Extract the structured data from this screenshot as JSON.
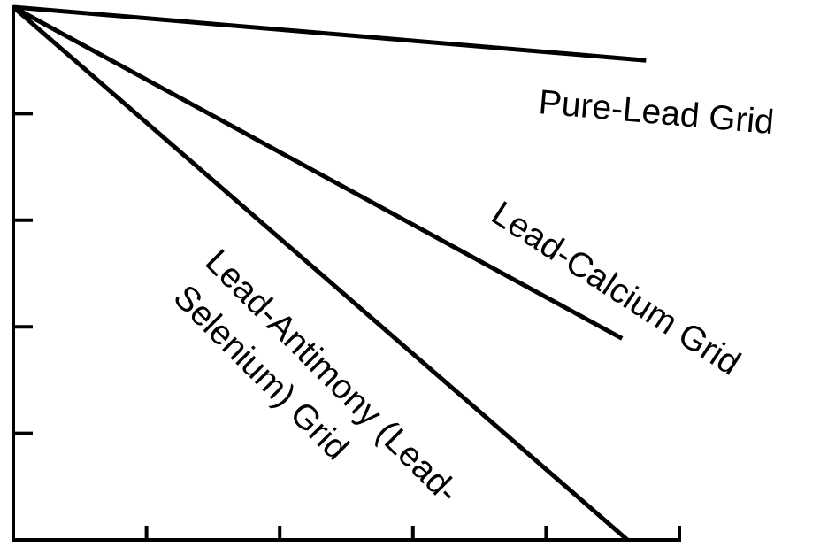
{
  "chart_data": {
    "type": "line",
    "xlim": [
      0,
      5
    ],
    "ylim": [
      0,
      5
    ],
    "xticks": [
      1,
      2,
      3,
      4,
      5
    ],
    "yticks": [
      1,
      2,
      3,
      4
    ],
    "series": [
      {
        "name": "Pure-Lead Grid",
        "color": "#000000",
        "x": [
          0,
          4.75
        ],
        "values": [
          5,
          4.5
        ]
      },
      {
        "name": "Lead-Calcium Grid",
        "color": "#000000",
        "x": [
          0,
          4.57
        ],
        "values": [
          5,
          1.89
        ]
      },
      {
        "name": [
          "Lead-Antimony (Lead-",
          "Selenium) Grid"
        ],
        "color": "#000000",
        "x": [
          0,
          4.61
        ],
        "values": [
          5,
          0
        ]
      }
    ]
  }
}
